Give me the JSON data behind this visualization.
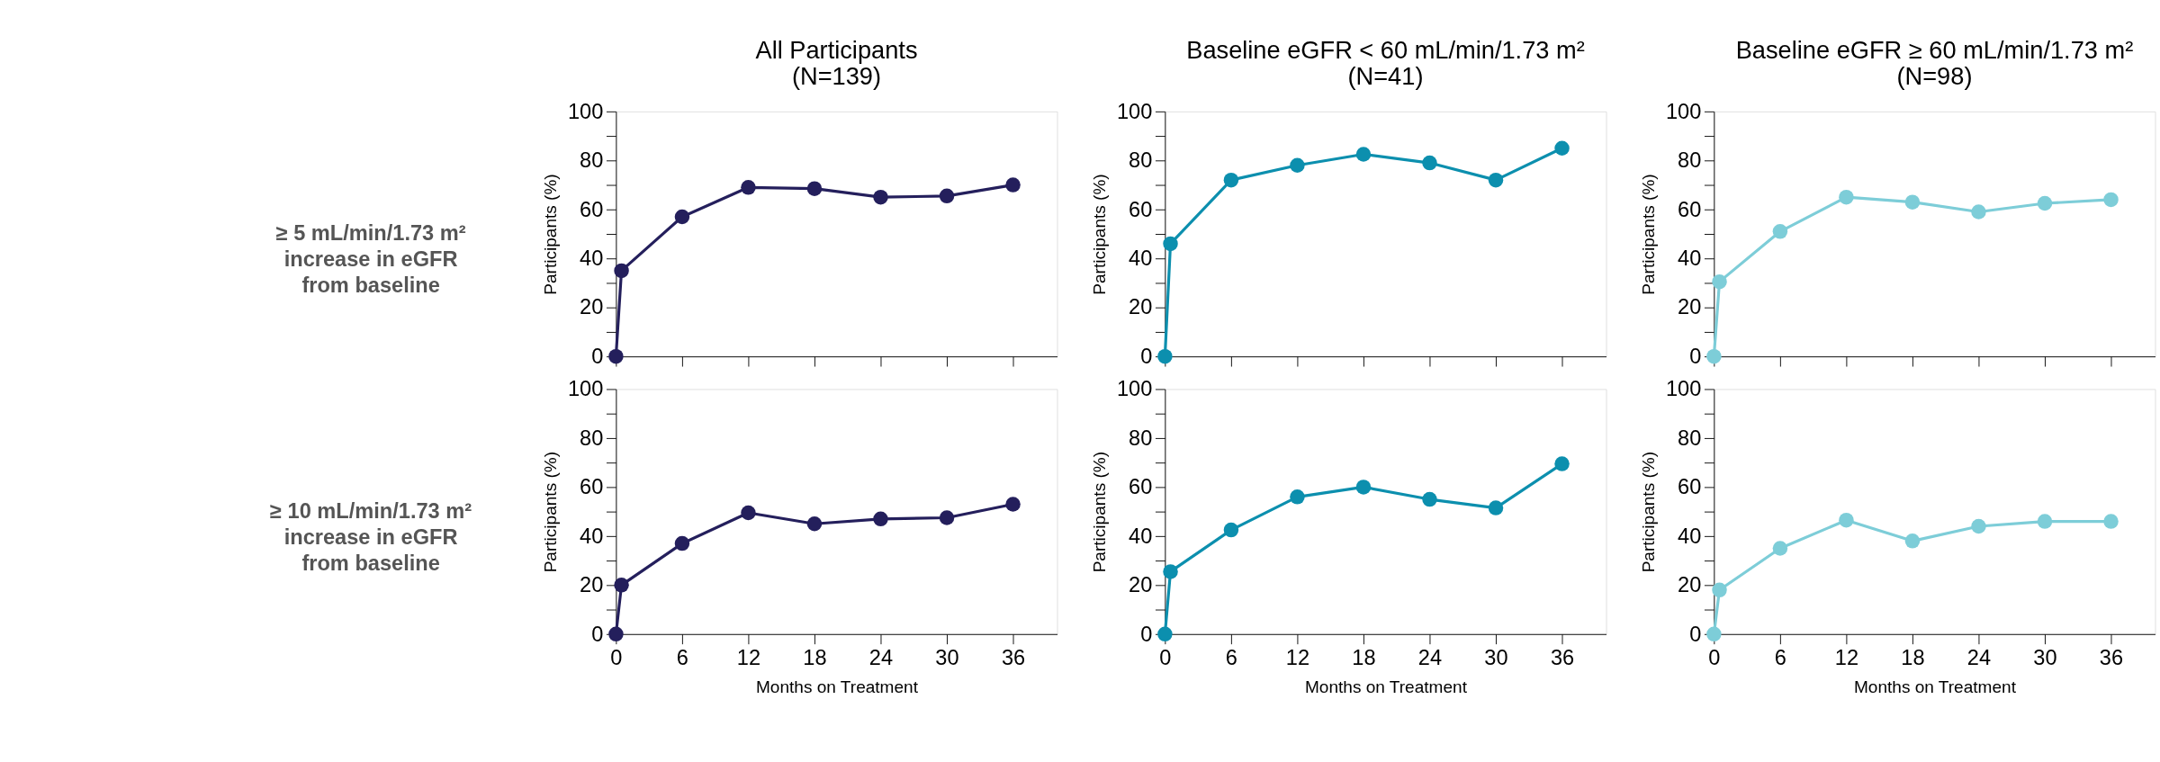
{
  "chart_data": [
    {
      "type": "line",
      "title": "All Participants",
      "subtitle": "(N=139)",
      "ylabel": "Participants (%)",
      "annotations": [
        "≥ 5 mL/min/1.73 m²\nincrease in eGFR\nfrom baseline"
      ],
      "x": [
        0,
        0.5,
        6,
        12,
        18,
        24,
        30,
        36
      ],
      "series": [
        {
          "color": "#241f5c",
          "values": [
            0,
            35,
            57,
            69,
            68.5,
            65,
            65.5,
            70
          ]
        }
      ],
      "xlim": [
        0,
        40
      ],
      "xticks": [
        0,
        6,
        12,
        18,
        24,
        30,
        36
      ],
      "ylim": [
        0,
        100
      ],
      "yticks": [
        0,
        {
          "value": 10,
          "label": null
        },
        20,
        {
          "value": 30,
          "label": null
        },
        40,
        {
          "value": 50,
          "label": null
        },
        60,
        {
          "value": 70,
          "label": null
        },
        80,
        {
          "value": 90,
          "label": null
        },
        100
      ],
      "marker": "circle",
      "tick_labels": "y"
    },
    {
      "type": "line",
      "title": "Baseline eGFR < 60 mL/min/1.73 m²",
      "subtitle": "(N=41)",
      "ylabel": "Participants (%)",
      "x": [
        0,
        0.5,
        6,
        12,
        18,
        24,
        30,
        36
      ],
      "series": [
        {
          "color": "#0c8fae",
          "values": [
            0,
            46,
            72,
            78,
            82.5,
            79,
            72,
            85
          ]
        }
      ],
      "xlim": [
        0,
        40
      ],
      "xticks": [
        0,
        6,
        12,
        18,
        24,
        30,
        36
      ],
      "ylim": [
        0,
        100
      ],
      "yticks": [
        0,
        {
          "value": 10,
          "label": null
        },
        20,
        {
          "value": 30,
          "label": null
        },
        40,
        {
          "value": 50,
          "label": null
        },
        60,
        {
          "value": 70,
          "label": null
        },
        80,
        {
          "value": 90,
          "label": null
        },
        100
      ],
      "marker": "circle",
      "tick_labels": "y"
    },
    {
      "type": "line",
      "title": "Baseline eGFR ≥ 60 mL/min/1.73 m²",
      "subtitle": "(N=98)",
      "ylabel": "Participants (%)",
      "x": [
        0,
        0.5,
        6,
        12,
        18,
        24,
        30,
        36
      ],
      "series": [
        {
          "color": "#7dcdd8",
          "values": [
            0,
            30.5,
            51,
            65,
            63,
            59,
            62.5,
            64
          ]
        }
      ],
      "xlim": [
        0,
        40
      ],
      "xticks": [
        0,
        6,
        12,
        18,
        24,
        30,
        36
      ],
      "ylim": [
        0,
        100
      ],
      "yticks": [
        0,
        {
          "value": 10,
          "label": null
        },
        20,
        {
          "value": 30,
          "label": null
        },
        40,
        {
          "value": 50,
          "label": null
        },
        60,
        {
          "value": 70,
          "label": null
        },
        80,
        {
          "value": 90,
          "label": null
        },
        100
      ],
      "marker": "circle",
      "tick_labels": "y"
    },
    {
      "type": "line",
      "xlabel": "Months on Treatment",
      "ylabel": "Participants (%)",
      "annotations": [
        "≥ 10 mL/min/1.73 m²\nincrease in eGFR\nfrom baseline"
      ],
      "x": [
        0,
        0.5,
        6,
        12,
        18,
        24,
        30,
        36
      ],
      "series": [
        {
          "color": "#241f5c",
          "values": [
            0,
            20,
            37,
            49.5,
            45,
            47,
            47.5,
            53
          ]
        }
      ],
      "xlim": [
        0,
        40
      ],
      "xticks": [
        0,
        6,
        12,
        18,
        24,
        30,
        36
      ],
      "ylim": [
        0,
        100
      ],
      "yticks": [
        0,
        {
          "value": 10,
          "label": null
        },
        20,
        {
          "value": 30,
          "label": null
        },
        40,
        {
          "value": 50,
          "label": null
        },
        60,
        {
          "value": 70,
          "label": null
        },
        80,
        {
          "value": 90,
          "label": null
        },
        100
      ],
      "marker": "circle"
    },
    {
      "type": "line",
      "xlabel": "Months on Treatment",
      "ylabel": "Participants (%)",
      "x": [
        0,
        0.5,
        6,
        12,
        18,
        24,
        30,
        36
      ],
      "series": [
        {
          "color": "#0c8fae",
          "values": [
            0,
            25.5,
            42.5,
            56,
            60,
            55,
            51.5,
            69.5
          ]
        }
      ],
      "xlim": [
        0,
        40
      ],
      "xticks": [
        0,
        6,
        12,
        18,
        24,
        30,
        36
      ],
      "ylim": [
        0,
        100
      ],
      "yticks": [
        0,
        {
          "value": 10,
          "label": null
        },
        20,
        {
          "value": 30,
          "label": null
        },
        40,
        {
          "value": 50,
          "label": null
        },
        60,
        {
          "value": 70,
          "label": null
        },
        80,
        {
          "value": 90,
          "label": null
        },
        100
      ],
      "marker": "circle"
    },
    {
      "type": "line",
      "xlabel": "Months on Treatment",
      "ylabel": "Participants (%)",
      "x": [
        0,
        0.5,
        6,
        12,
        18,
        24,
        30,
        36
      ],
      "series": [
        {
          "color": "#7dcdd8",
          "values": [
            0,
            18,
            35,
            46.5,
            38,
            44,
            46,
            46
          ]
        }
      ],
      "xlim": [
        0,
        40
      ],
      "xticks": [
        0,
        6,
        12,
        18,
        24,
        30,
        36
      ],
      "ylim": [
        0,
        100
      ],
      "yticks": [
        0,
        {
          "value": 10,
          "label": null
        },
        20,
        {
          "value": 30,
          "label": null
        },
        40,
        {
          "value": 50,
          "label": null
        },
        60,
        {
          "value": 70,
          "label": null
        },
        80,
        {
          "value": 90,
          "label": null
        },
        100
      ],
      "marker": "circle"
    }
  ]
}
